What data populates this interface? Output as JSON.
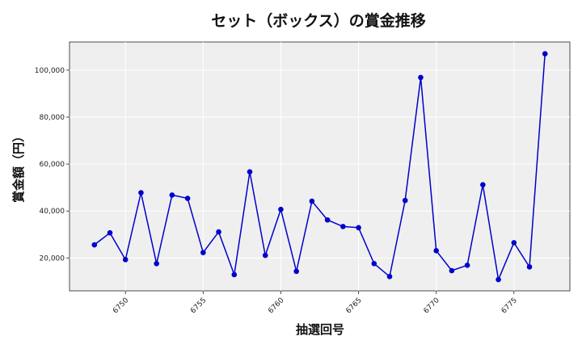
{
  "chart_data": {
    "type": "line",
    "title": "セット（ボックス）の賞金推移",
    "xlabel": "抽選回号",
    "ylabel": "賞金額（円）",
    "xlim": [
      6746.4,
      6778.6
    ],
    "ylim": [
      6000,
      112000
    ],
    "x_ticks": [
      6750,
      6755,
      6760,
      6765,
      6770,
      6775
    ],
    "y_ticks": [
      20000,
      40000,
      60000,
      80000,
      100000
    ],
    "y_tick_labels": [
      "20,000",
      "40,000",
      "60,000",
      "80,000",
      "100,000"
    ],
    "grid": true,
    "series": [
      {
        "color": "#0000cc",
        "x": [
          6748,
          6749,
          6750,
          6751,
          6752,
          6753,
          6754,
          6755,
          6756,
          6757,
          6758,
          6759,
          6760,
          6761,
          6762,
          6763,
          6764,
          6765,
          6766,
          6767,
          6768,
          6769,
          6770,
          6771,
          6772,
          6773,
          6774,
          6775,
          6776,
          6777
        ],
        "values": [
          25600,
          30700,
          19300,
          47800,
          17600,
          46800,
          45400,
          22300,
          31100,
          12900,
          56700,
          21100,
          40700,
          14300,
          44200,
          36200,
          33400,
          32900,
          17600,
          12100,
          44500,
          96900,
          23100,
          14600,
          16900,
          51200,
          10800,
          26500,
          16200,
          107000
        ]
      }
    ]
  }
}
